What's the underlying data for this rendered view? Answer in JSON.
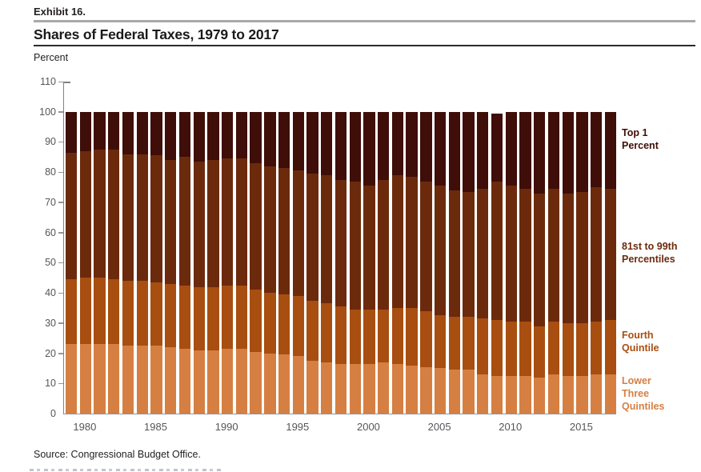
{
  "page": {
    "exhibit_label": "Exhibit 16.",
    "title": "Shares of Federal Taxes, 1979 to 2017",
    "axis_unit_label": "Percent",
    "source": "Source: Congressional Budget Office."
  },
  "colors": {
    "top_1_percent": "#3f0e08",
    "p81_to_99": "#6c2a0d",
    "fourth_quintile": "#a84e10",
    "lower_three_quintiles": "#d67f42",
    "axis": "#808285",
    "tick_label": "#55565a"
  },
  "chart_data": {
    "type": "bar",
    "stacked": true,
    "title": "Shares of Federal Taxes, 1979 to 2017",
    "xlabel": "",
    "ylabel": "Percent",
    "ylim": [
      0,
      110
    ],
    "ytick_step": 10,
    "grid": false,
    "legend_position": "right",
    "x": [
      1979,
      1980,
      1981,
      1982,
      1983,
      1984,
      1985,
      1986,
      1987,
      1988,
      1989,
      1990,
      1991,
      1992,
      1993,
      1994,
      1995,
      1996,
      1997,
      1998,
      1999,
      2000,
      2001,
      2002,
      2003,
      2004,
      2005,
      2006,
      2007,
      2008,
      2009,
      2010,
      2011,
      2012,
      2013,
      2014,
      2015,
      2016,
      2017
    ],
    "x_tick_years": [
      1980,
      1985,
      1990,
      1995,
      2000,
      2005,
      2010,
      2015
    ],
    "series": [
      {
        "name": "Lower Three Quintiles",
        "color": "#d67f42",
        "values": [
          23,
          23,
          23,
          23,
          22.5,
          22.5,
          22.5,
          22,
          21.5,
          21,
          21,
          21.5,
          21.5,
          20.5,
          20,
          19.5,
          19,
          17.5,
          17,
          16.5,
          16.5,
          16.5,
          17,
          16.5,
          16,
          15.5,
          15,
          14.5,
          14.5,
          13,
          12.5,
          12.5,
          12.5,
          12,
          13,
          12.5,
          12.5,
          13,
          13
        ]
      },
      {
        "name": "Fourth Quintile",
        "color": "#a84e10",
        "values": [
          21.5,
          22,
          22,
          21.5,
          21.5,
          21.5,
          21,
          21,
          21,
          21,
          21,
          21,
          21,
          20.5,
          20,
          20,
          20,
          20,
          19.5,
          19,
          18,
          18,
          17.5,
          18.5,
          19,
          18.5,
          17.5,
          17.5,
          17.5,
          18.5,
          18.5,
          18,
          18,
          17,
          17.5,
          17.5,
          17.5,
          17.5,
          18
        ]
      },
      {
        "name": "81st to 99th Percentiles",
        "color": "#6c2a0d",
        "values": [
          42,
          42,
          42.5,
          43,
          42,
          42,
          42,
          41,
          42.5,
          41.5,
          42,
          42,
          42,
          42,
          42,
          42,
          41.5,
          42,
          42.5,
          42,
          42.5,
          41,
          43,
          44,
          43.5,
          43,
          43,
          42,
          41.5,
          43,
          46,
          45,
          44,
          44,
          44,
          43,
          43.5,
          44.5,
          43.5
        ]
      },
      {
        "name": "Top 1 Percent",
        "color": "#3f0e08",
        "values": [
          13.5,
          13,
          12.5,
          12.5,
          14,
          14,
          14.5,
          16,
          15,
          16.5,
          16,
          15.5,
          15.5,
          17,
          18,
          18.5,
          19.5,
          20.5,
          21,
          22.5,
          23,
          24.5,
          22.5,
          21,
          21.5,
          23,
          24.5,
          26,
          26.5,
          25.5,
          22.5,
          24.5,
          25.5,
          27,
          25.5,
          27,
          26.5,
          25,
          25.5
        ]
      }
    ],
    "legend": [
      {
        "lines": [
          "Top 1",
          "Percent"
        ],
        "color": "#3f0e08"
      },
      {
        "lines": [
          "81st to 99th",
          "Percentiles"
        ],
        "color": "#6c2a0d"
      },
      {
        "lines": [
          "Fourth",
          "Quintile"
        ],
        "color": "#a84e10"
      },
      {
        "lines": [
          "Lower",
          "Three",
          "Quintiles"
        ],
        "color": "#d67f42"
      }
    ]
  }
}
